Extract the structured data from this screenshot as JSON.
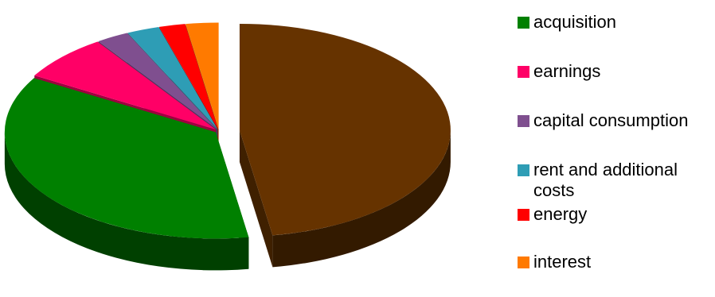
{
  "chart_data": {
    "type": "pie",
    "variant": "3d-exploded",
    "title": "",
    "categories": [
      "acquisition",
      "earnings",
      "capital consumption",
      "rent and additional costs",
      "energy",
      "interest"
    ],
    "legend_labels": [
      "acquisition",
      "earnings",
      "capital consumption",
      "rent and additional",
      "energy",
      "interest"
    ],
    "legend_labels_wrapped": [
      "",
      "",
      "",
      "costs",
      "",
      ""
    ],
    "values": [
      36,
      7,
      2.5,
      2.5,
      2,
      2.5
    ],
    "unlisted_slice": {
      "value": 47.5,
      "color": "#663300"
    },
    "colors": [
      "#008000",
      "#FF0066",
      "#7F4F8F",
      "#2E9DB5",
      "#FF0000",
      "#FF7A00"
    ],
    "legend_position": "right"
  }
}
